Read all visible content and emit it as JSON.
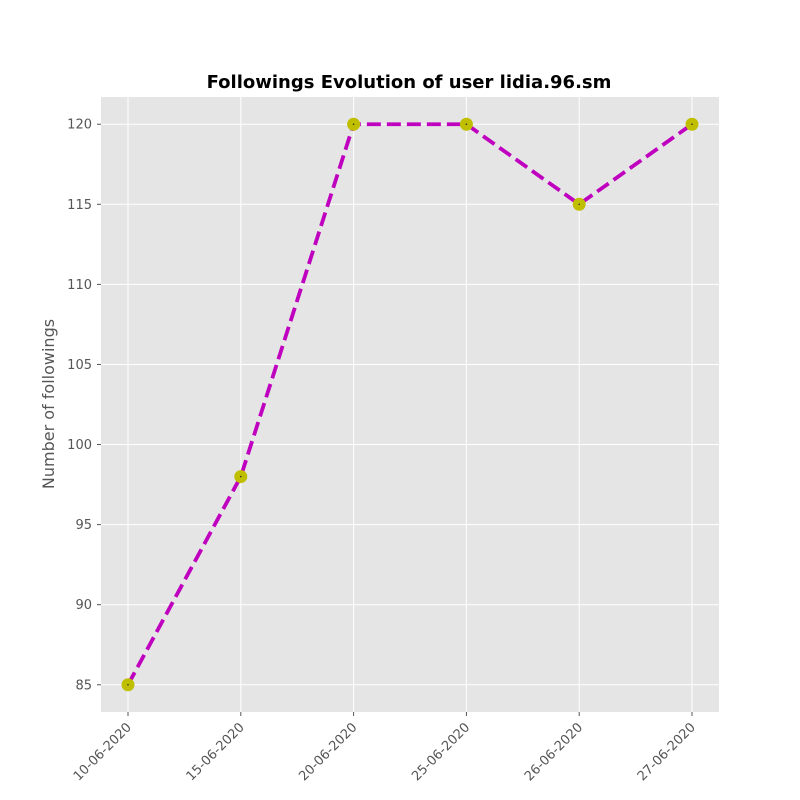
{
  "chart_data": {
    "type": "line",
    "title": "Followings Evolution of user lidia.96.sm",
    "xlabel": "",
    "ylabel": "Number of followings",
    "categories": [
      "10-06-2020",
      "15-06-2020",
      "20-06-2020",
      "25-06-2020",
      "26-06-2020",
      "27-06-2020"
    ],
    "series": [
      {
        "values": [
          85,
          98,
          120,
          120,
          115,
          120
        ]
      }
    ],
    "ylim": [
      83.3,
      121.7
    ],
    "yticks": [
      85,
      90,
      95,
      100,
      105,
      110,
      115,
      120
    ],
    "grid": true,
    "line_style": "dashed",
    "colors": {
      "line": "#bf00bf",
      "marker": "#bfbf00",
      "plot_background": "#e5e5e5",
      "grid": "#ffffff"
    }
  }
}
